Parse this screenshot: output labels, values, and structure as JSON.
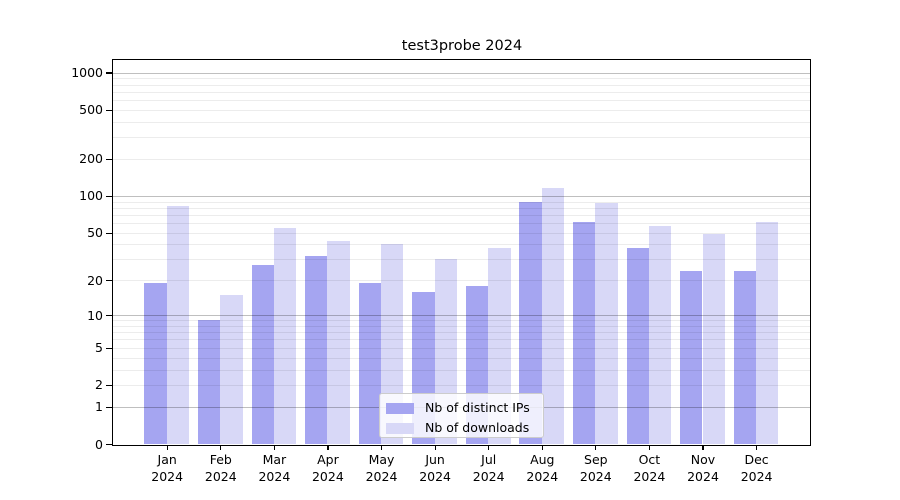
{
  "title": "test3probe 2024",
  "chart_data": {
    "type": "bar",
    "title": "test3probe 2024",
    "categories": [
      "Jan",
      "Feb",
      "Mar",
      "Apr",
      "May",
      "Jun",
      "Jul",
      "Aug",
      "Sep",
      "Oct",
      "Nov",
      "Dec"
    ],
    "x_sublabel": "2024",
    "series": [
      {
        "name": "Nb of distinct IPs",
        "color": "#a5a5f1",
        "values": [
          19,
          9,
          27,
          32,
          19,
          16,
          18,
          90,
          61,
          37,
          24,
          24
        ]
      },
      {
        "name": "Nb of downloads",
        "color": "#d8d8f7",
        "values": [
          83,
          15,
          55,
          43,
          40,
          30,
          37,
          116,
          87,
          57,
          49,
          61
        ]
      }
    ],
    "y_axis": {
      "scale": "log10(value+1)",
      "ticks": [
        1000,
        500,
        200,
        100,
        50,
        20,
        10,
        5,
        2,
        1,
        0
      ],
      "range": [
        0,
        1300
      ]
    },
    "grid": "horizontal log gridlines, major at powers of 10, minor at 2-9 multiples",
    "legend": {
      "position": "inside bottom-center",
      "items": [
        "Nb of distinct IPs",
        "Nb of downloads"
      ]
    },
    "colors": {
      "background": "#ffffff",
      "axis": "#000000",
      "major_grid": "rgba(0,0,0,0.25)",
      "minor_grid": "rgba(0,0,0,0.075)"
    }
  }
}
